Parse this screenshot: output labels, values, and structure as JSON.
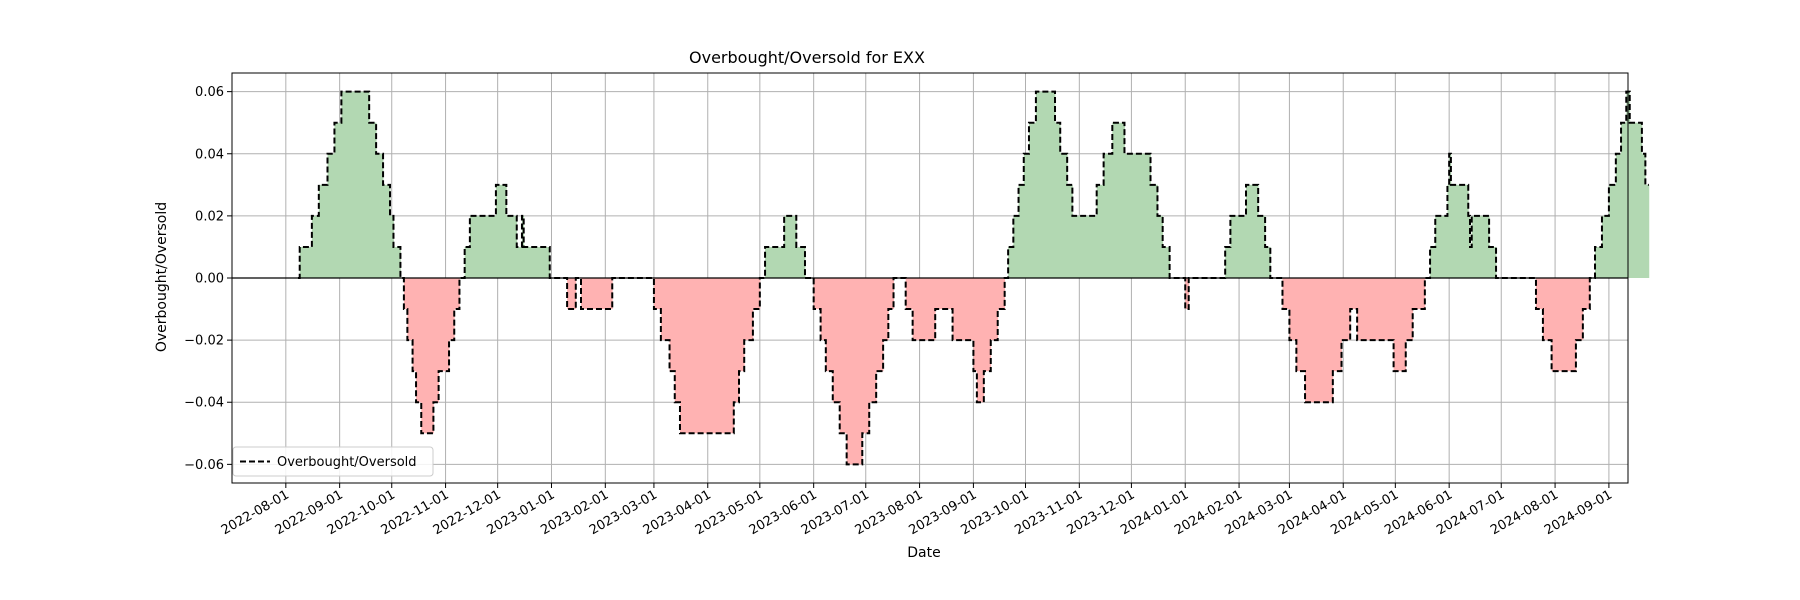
{
  "chart_data": {
    "type": "area",
    "title": "Overbought/Oversold for EXX",
    "xlabel": "Date",
    "ylabel": "Overbought/Oversold",
    "xlim": [
      "2022-07-01",
      "2024-09-12"
    ],
    "ylim": [
      -0.066,
      0.066
    ],
    "y_ticks": [
      -0.06,
      -0.04,
      -0.02,
      0.0,
      0.02,
      0.04,
      0.06
    ],
    "y_tick_labels": [
      "−0.06",
      "−0.04",
      "−0.02",
      "0.00",
      "0.02",
      "0.04",
      "0.06"
    ],
    "x_ticks": [
      "2022-08-01",
      "2022-09-01",
      "2022-10-01",
      "2022-11-01",
      "2022-12-01",
      "2023-01-01",
      "2023-02-01",
      "2023-03-01",
      "2023-04-01",
      "2023-05-01",
      "2023-06-01",
      "2023-07-01",
      "2023-08-01",
      "2023-09-01",
      "2023-10-01",
      "2023-11-01",
      "2023-12-01",
      "2024-01-01",
      "2024-02-01",
      "2024-03-01",
      "2024-04-01",
      "2024-05-01",
      "2024-06-01",
      "2024-07-01",
      "2024-08-01",
      "2024-09-01"
    ],
    "grid": true,
    "legend": {
      "position": "lower-left",
      "entries": [
        "Overbought/Oversold"
      ]
    },
    "colors": {
      "positive_fill": "#b2d8b2",
      "negative_fill": "#ffb2b2",
      "line": "#000000",
      "zero_line": "#000000",
      "grid": "#b0b0b0"
    },
    "series": [
      {
        "name": "Overbought/Oversold",
        "style": "dashed-step",
        "points": [
          [
            "2022-08-08",
            0.0
          ],
          [
            "2022-08-09",
            0.01
          ],
          [
            "2022-08-16",
            0.02
          ],
          [
            "2022-08-20",
            0.03
          ],
          [
            "2022-08-25",
            0.04
          ],
          [
            "2022-08-29",
            0.05
          ],
          [
            "2022-09-02",
            0.06
          ],
          [
            "2022-09-18",
            0.05
          ],
          [
            "2022-09-22",
            0.04
          ],
          [
            "2022-09-26",
            0.03
          ],
          [
            "2022-09-30",
            0.02
          ],
          [
            "2022-10-02",
            0.01
          ],
          [
            "2022-10-06",
            0.0
          ],
          [
            "2022-10-08",
            -0.01
          ],
          [
            "2022-10-10",
            -0.02
          ],
          [
            "2022-10-13",
            -0.03
          ],
          [
            "2022-10-15",
            -0.04
          ],
          [
            "2022-10-18",
            -0.05
          ],
          [
            "2022-10-25",
            -0.04
          ],
          [
            "2022-10-28",
            -0.03
          ],
          [
            "2022-11-03",
            -0.02
          ],
          [
            "2022-11-06",
            -0.01
          ],
          [
            "2022-11-09",
            0.0
          ],
          [
            "2022-11-12",
            0.01
          ],
          [
            "2022-11-15",
            0.02
          ],
          [
            "2022-11-30",
            0.03
          ],
          [
            "2022-12-06",
            0.02
          ],
          [
            "2022-12-12",
            0.01
          ],
          [
            "2022-12-15",
            0.02
          ],
          [
            "2022-12-16",
            0.01
          ],
          [
            "2022-12-31",
            0.0
          ],
          [
            "2023-01-10",
            -0.01
          ],
          [
            "2023-01-15",
            0.0
          ],
          [
            "2023-01-18",
            -0.01
          ],
          [
            "2023-02-05",
            0.0
          ],
          [
            "2023-03-01",
            -0.01
          ],
          [
            "2023-03-05",
            -0.02
          ],
          [
            "2023-03-10",
            -0.03
          ],
          [
            "2023-03-13",
            -0.04
          ],
          [
            "2023-03-16",
            -0.05
          ],
          [
            "2023-04-16",
            -0.04
          ],
          [
            "2023-04-19",
            -0.03
          ],
          [
            "2023-04-22",
            -0.02
          ],
          [
            "2023-04-27",
            -0.01
          ],
          [
            "2023-05-01",
            0.0
          ],
          [
            "2023-05-04",
            0.01
          ],
          [
            "2023-05-15",
            0.02
          ],
          [
            "2023-05-22",
            0.01
          ],
          [
            "2023-05-27",
            0.0
          ],
          [
            "2023-06-01",
            -0.01
          ],
          [
            "2023-06-05",
            -0.02
          ],
          [
            "2023-06-08",
            -0.03
          ],
          [
            "2023-06-12",
            -0.04
          ],
          [
            "2023-06-16",
            -0.05
          ],
          [
            "2023-06-20",
            -0.06
          ],
          [
            "2023-06-29",
            -0.05
          ],
          [
            "2023-07-03",
            -0.04
          ],
          [
            "2023-07-07",
            -0.03
          ],
          [
            "2023-07-11",
            -0.02
          ],
          [
            "2023-07-14",
            -0.01
          ],
          [
            "2023-07-17",
            0.0
          ],
          [
            "2023-07-24",
            -0.01
          ],
          [
            "2023-07-28",
            -0.02
          ],
          [
            "2023-08-10",
            -0.01
          ],
          [
            "2023-08-20",
            -0.02
          ],
          [
            "2023-09-01",
            -0.03
          ],
          [
            "2023-09-03",
            -0.04
          ],
          [
            "2023-09-07",
            -0.03
          ],
          [
            "2023-09-11",
            -0.02
          ],
          [
            "2023-09-15",
            -0.01
          ],
          [
            "2023-09-19",
            0.0
          ],
          [
            "2023-09-21",
            0.01
          ],
          [
            "2023-09-24",
            0.02
          ],
          [
            "2023-09-27",
            0.03
          ],
          [
            "2023-09-30",
            0.04
          ],
          [
            "2023-10-03",
            0.05
          ],
          [
            "2023-10-07",
            0.06
          ],
          [
            "2023-10-18",
            0.05
          ],
          [
            "2023-10-21",
            0.04
          ],
          [
            "2023-10-25",
            0.03
          ],
          [
            "2023-10-28",
            0.02
          ],
          [
            "2023-11-11",
            0.03
          ],
          [
            "2023-11-15",
            0.04
          ],
          [
            "2023-11-20",
            0.05
          ],
          [
            "2023-11-27",
            0.04
          ],
          [
            "2023-12-12",
            0.03
          ],
          [
            "2023-12-16",
            0.02
          ],
          [
            "2023-12-19",
            0.01
          ],
          [
            "2023-12-23",
            0.0
          ],
          [
            "2024-01-01",
            -0.01
          ],
          [
            "2024-01-03",
            0.0
          ],
          [
            "2024-01-24",
            0.01
          ],
          [
            "2024-01-27",
            0.02
          ],
          [
            "2024-02-05",
            0.03
          ],
          [
            "2024-02-12",
            0.02
          ],
          [
            "2024-02-16",
            0.01
          ],
          [
            "2024-02-19",
            0.0
          ],
          [
            "2024-02-26",
            -0.01
          ],
          [
            "2024-03-01",
            -0.02
          ],
          [
            "2024-03-05",
            -0.03
          ],
          [
            "2024-03-10",
            -0.04
          ],
          [
            "2024-03-26",
            -0.03
          ],
          [
            "2024-03-31",
            -0.02
          ],
          [
            "2024-04-05",
            -0.01
          ],
          [
            "2024-04-09",
            -0.02
          ],
          [
            "2024-04-30",
            -0.03
          ],
          [
            "2024-05-07",
            -0.02
          ],
          [
            "2024-05-11",
            -0.01
          ],
          [
            "2024-05-18",
            0.0
          ],
          [
            "2024-05-21",
            0.01
          ],
          [
            "2024-05-24",
            0.02
          ],
          [
            "2024-05-31",
            0.03
          ],
          [
            "2024-06-01",
            0.04
          ],
          [
            "2024-06-02",
            0.03
          ],
          [
            "2024-06-12",
            0.02
          ],
          [
            "2024-06-13",
            0.01
          ],
          [
            "2024-06-14",
            0.02
          ],
          [
            "2024-06-24",
            0.01
          ],
          [
            "2024-06-28",
            0.0
          ],
          [
            "2024-07-21",
            -0.01
          ],
          [
            "2024-07-25",
            -0.02
          ],
          [
            "2024-07-30",
            -0.03
          ],
          [
            "2024-08-13",
            -0.02
          ],
          [
            "2024-08-17",
            -0.01
          ],
          [
            "2024-08-21",
            0.0
          ],
          [
            "2024-08-24",
            0.01
          ],
          [
            "2024-08-28",
            0.02
          ],
          [
            "2024-09-01",
            0.03
          ],
          [
            "2024-09-05",
            0.04
          ],
          [
            "2024-09-08",
            0.05
          ],
          [
            "2024-09-11",
            0.06
          ],
          [
            "2024-09-13",
            0.05
          ],
          [
            "2024-09-20",
            0.04
          ],
          [
            "2024-09-22",
            0.03
          ],
          [
            "2024-09-24",
            0.03
          ]
        ]
      }
    ]
  }
}
